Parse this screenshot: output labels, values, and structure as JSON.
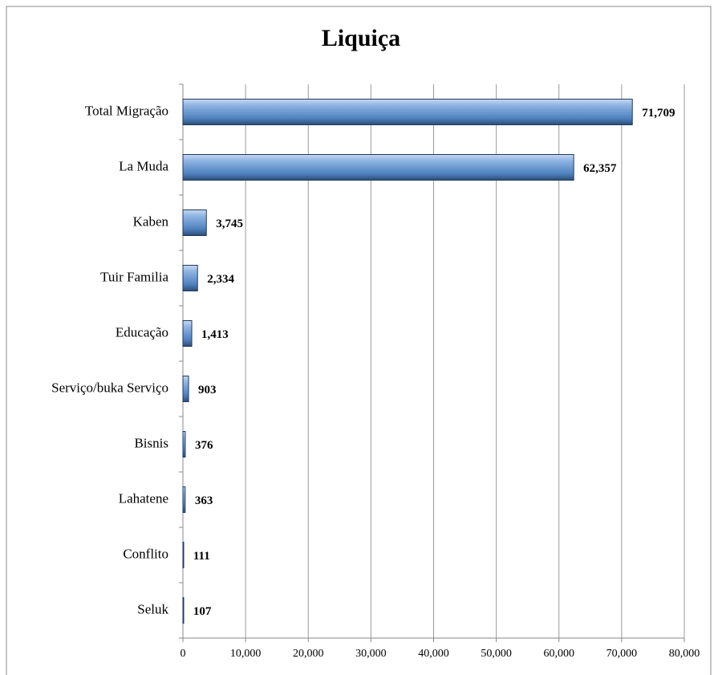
{
  "chart_data": {
    "type": "bar",
    "orientation": "horizontal",
    "title": "Liquiça",
    "categories": [
      "Total Migração",
      "La Muda",
      "Kaben",
      "Tuir Familia",
      "Educação",
      "Serviço/buka Serviço",
      "Bisnis",
      "Lahatene",
      "Conflito",
      "Seluk"
    ],
    "values": [
      71709,
      62357,
      3745,
      2334,
      1413,
      903,
      376,
      363,
      111,
      107
    ],
    "value_labels": [
      "71,709",
      "62,357",
      "3,745",
      "2,334",
      "1,413",
      "903",
      "376",
      "363",
      "111",
      "107"
    ],
    "color": "#4f81bd",
    "xlim": [
      0,
      80000
    ],
    "xticks": [
      0,
      {
        "value": 10000,
        "label": "10,000"
      },
      {
        "value": 20000,
        "label": "20,000"
      },
      {
        "value": 30000,
        "label": "30,000"
      },
      {
        "value": 40000,
        "label": "40,000"
      },
      {
        "value": 50000,
        "label": "50,000"
      },
      {
        "value": 60000,
        "label": "60,000"
      },
      {
        "value": 70000,
        "label": "70,000"
      },
      {
        "value": 80000,
        "label": "80,000"
      }
    ],
    "grid": true
  }
}
